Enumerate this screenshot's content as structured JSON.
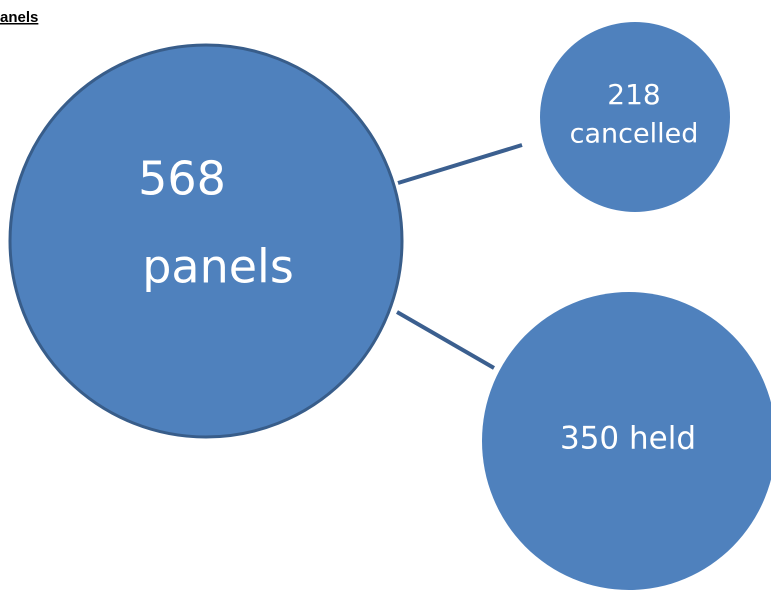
{
  "header": {
    "title": "anels"
  },
  "nodes": [
    {
      "label": [
        "568",
        "panels"
      ]
    },
    {
      "label": [
        "218",
        "cancelled"
      ]
    },
    {
      "label": [
        "350 held"
      ]
    }
  ]
}
